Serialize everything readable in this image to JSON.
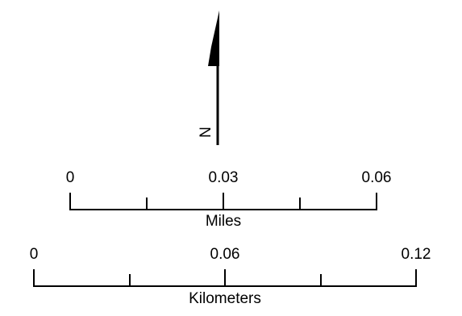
{
  "north_arrow": {
    "label": "N",
    "icon": "north-arrow-icon"
  },
  "scale_bars": [
    {
      "unit_label": "Miles",
      "ticks": [
        "0",
        "0.03",
        "0.06"
      ]
    },
    {
      "unit_label": "Kilometers",
      "ticks": [
        "0",
        "0.06",
        "0.12"
      ]
    }
  ],
  "colors": {
    "ink": "#000000",
    "background": "#ffffff"
  }
}
